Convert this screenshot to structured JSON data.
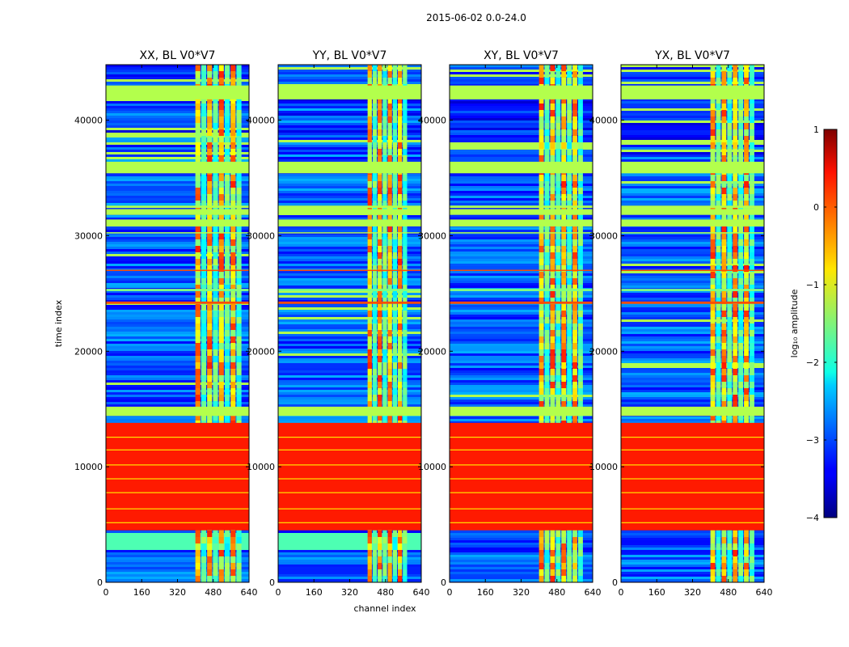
{
  "chart_data": {
    "type": "heatmap",
    "suptitle": "2015-06-02 0.0-24.0",
    "xlabel": "channel index",
    "ylabel": "time index",
    "xlim": [
      0,
      640
    ],
    "ylim": [
      0,
      44800
    ],
    "x_ticks": [
      "0",
      "160",
      "320",
      "480",
      "640"
    ],
    "y_ticks": [
      "0",
      "10000",
      "20000",
      "30000",
      "40000"
    ],
    "x_tick_values": [
      0,
      160,
      320,
      480,
      640
    ],
    "y_tick_values": [
      0,
      10000,
      20000,
      30000,
      40000
    ],
    "panels": [
      {
        "title": "XX, BL V0*V7",
        "rfi_channel_range": [
          400,
          610
        ],
        "low_band_level": 0.45
      },
      {
        "title": "YY, BL V0*V7",
        "rfi_channel_range": [
          400,
          580
        ],
        "low_band_level": 0.45
      },
      {
        "title": "XY, BL V0*V7",
        "rfi_channel_range": [
          400,
          600
        ],
        "low_band_level": 0.2
      },
      {
        "title": "YX, BL V0*V7",
        "rfi_channel_range": [
          400,
          600
        ],
        "low_band_level": 0.2
      }
    ],
    "flagged_time_ranges": [
      {
        "start": 4500,
        "end": 13800,
        "level": 0.85
      },
      {
        "start": 35400,
        "end": 36400,
        "level": 0.55
      },
      {
        "start": 41800,
        "end": 43000,
        "level": 0.55
      }
    ],
    "colorbar": {
      "label": "log₁₀ amplitude",
      "ticks": [
        "1",
        "0",
        "−1",
        "−2",
        "−3",
        "−4"
      ],
      "tick_values": [
        1,
        0,
        -1,
        -2,
        -3,
        -4
      ],
      "range": [
        -4,
        1
      ],
      "colormap": "jet"
    }
  }
}
